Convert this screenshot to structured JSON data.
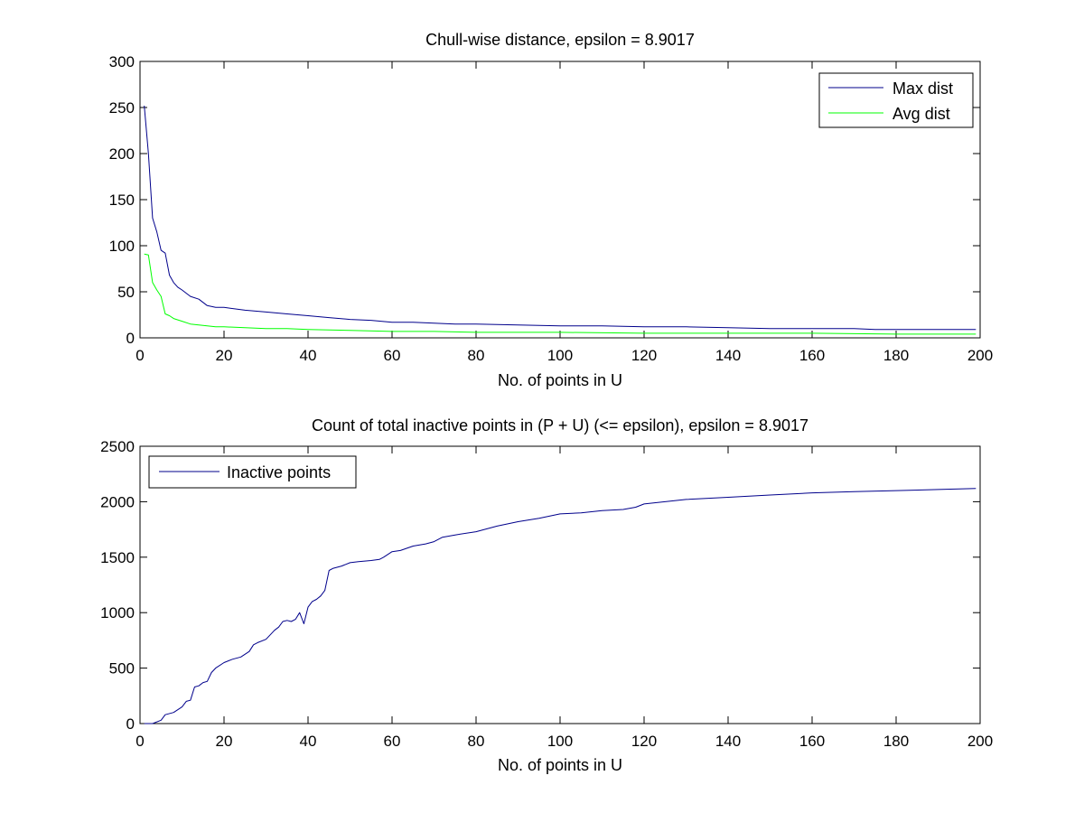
{
  "chart_data": [
    {
      "type": "line",
      "title": "Chull-wise distance, epsilon = 8.9017",
      "xlabel": "No. of points in U",
      "ylabel": "",
      "xlim": [
        0,
        200
      ],
      "ylim": [
        0,
        300
      ],
      "xticks": [
        0,
        20,
        40,
        60,
        80,
        100,
        120,
        140,
        160,
        180,
        200
      ],
      "yticks": [
        0,
        50,
        100,
        150,
        200,
        250,
        300
      ],
      "grid": false,
      "legend_position": "top-right",
      "series": [
        {
          "name": "Max dist",
          "color": "#00008B",
          "x": [
            1,
            2,
            3,
            4,
            5,
            6,
            7,
            8,
            9,
            10,
            12,
            14,
            16,
            18,
            20,
            25,
            30,
            35,
            40,
            45,
            50,
            55,
            60,
            65,
            70,
            75,
            80,
            90,
            100,
            110,
            120,
            130,
            140,
            150,
            160,
            170,
            175,
            180,
            190,
            199
          ],
          "values": [
            252,
            200,
            130,
            115,
            95,
            92,
            68,
            60,
            55,
            52,
            45,
            42,
            35,
            33,
            33,
            30,
            28,
            26,
            24,
            22,
            20,
            19,
            17,
            17,
            16,
            15,
            15,
            14,
            13,
            13,
            12,
            12,
            11,
            10,
            10,
            10,
            9,
            9,
            9,
            9
          ]
        },
        {
          "name": "Avg dist",
          "color": "#00FF00",
          "x": [
            1,
            2,
            3,
            4,
            5,
            6,
            7,
            8,
            10,
            12,
            14,
            16,
            18,
            20,
            25,
            30,
            35,
            40,
            50,
            60,
            70,
            80,
            100,
            120,
            140,
            160,
            180,
            199
          ],
          "values": [
            91,
            90,
            60,
            52,
            45,
            26,
            24,
            21,
            18,
            15,
            14,
            13,
            12,
            12,
            11,
            10,
            10,
            9,
            8,
            7,
            7,
            6,
            6,
            5,
            5,
            5,
            4,
            4
          ]
        }
      ]
    },
    {
      "type": "line",
      "title": "Count of total inactive points in (P + U) (<= epsilon), epsilon = 8.9017",
      "xlabel": "No. of points in U",
      "ylabel": "",
      "xlim": [
        0,
        200
      ],
      "ylim": [
        0,
        2500
      ],
      "xticks": [
        0,
        20,
        40,
        60,
        80,
        100,
        120,
        140,
        160,
        180,
        200
      ],
      "yticks": [
        0,
        500,
        1000,
        1500,
        2000,
        2500
      ],
      "grid": false,
      "legend_position": "top-left",
      "series": [
        {
          "name": "Inactive points",
          "color": "#00008B",
          "x": [
            1,
            3,
            5,
            6,
            8,
            10,
            11,
            12,
            13,
            14,
            15,
            16,
            17,
            18,
            20,
            22,
            24,
            26,
            27,
            28,
            30,
            31,
            32,
            33,
            34,
            35,
            36,
            37,
            38,
            39,
            40,
            41,
            42,
            43,
            44,
            45,
            46,
            48,
            50,
            52,
            55,
            57,
            58,
            60,
            62,
            65,
            68,
            70,
            72,
            75,
            80,
            85,
            90,
            95,
            100,
            105,
            110,
            115,
            118,
            120,
            125,
            130,
            140,
            150,
            160,
            170,
            180,
            190,
            199
          ],
          "values": [
            0,
            0,
            30,
            80,
            100,
            150,
            200,
            210,
            330,
            340,
            370,
            380,
            460,
            500,
            550,
            580,
            600,
            650,
            710,
            730,
            760,
            800,
            840,
            870,
            920,
            930,
            920,
            940,
            1000,
            900,
            1050,
            1100,
            1120,
            1150,
            1200,
            1380,
            1400,
            1420,
            1450,
            1460,
            1470,
            1480,
            1500,
            1550,
            1560,
            1600,
            1620,
            1640,
            1680,
            1700,
            1730,
            1780,
            1820,
            1850,
            1890,
            1900,
            1920,
            1930,
            1950,
            1980,
            2000,
            2020,
            2040,
            2060,
            2080,
            2090,
            2100,
            2110,
            2120
          ]
        }
      ]
    }
  ]
}
